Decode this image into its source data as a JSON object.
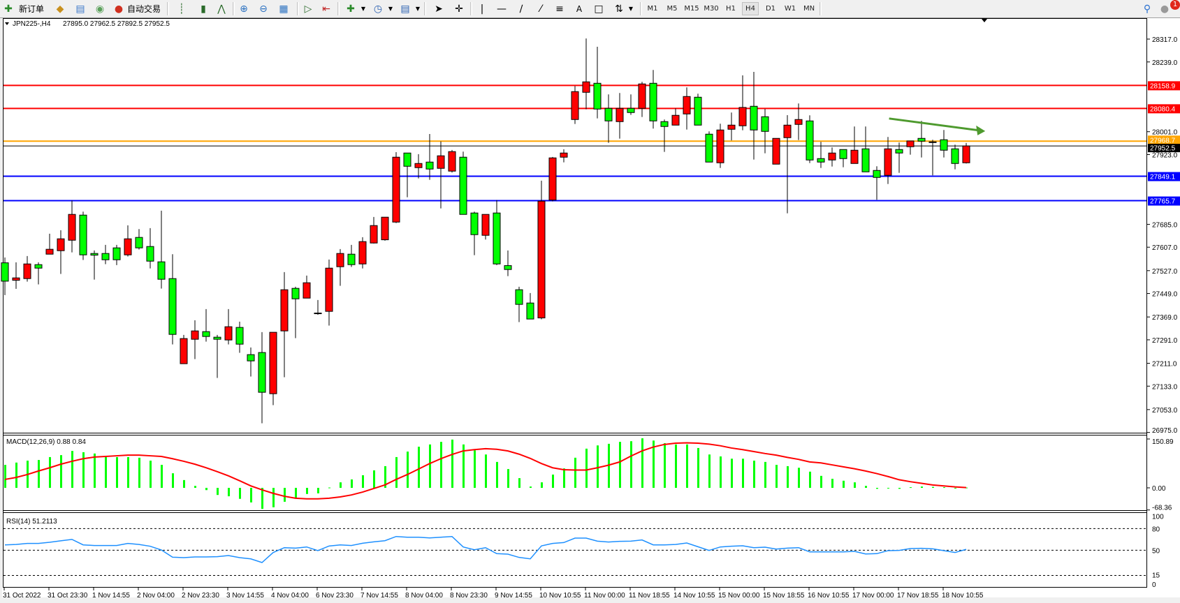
{
  "toolbar": {
    "new_order": "新订单",
    "auto_trading": "自动交易",
    "timeframes": [
      "M1",
      "M5",
      "M15",
      "M30",
      "H1",
      "H4",
      "D1",
      "W1",
      "MN"
    ],
    "active_timeframe": "H4",
    "text_tool": "A",
    "notification_count": "1",
    "icons": [
      "new-order-icon",
      "market-watch-icon",
      "data-window-icon",
      "signals-icon",
      "auto-trading-icon",
      "bar-chart-icon",
      "candlestick-icon",
      "line-chart-icon",
      "zoom-in-icon",
      "zoom-out-icon",
      "tile-windows-icon",
      "auto-scroll-icon",
      "chart-shift-icon",
      "indicators-icon",
      "periods-icon",
      "templates-icon",
      "cursor-icon",
      "crosshair-icon",
      "vertical-line-icon",
      "horizontal-line-icon",
      "trendline-icon",
      "equidistant-channel-icon",
      "fibonacci-icon",
      "text-icon",
      "text-label-icon",
      "arrows-icon",
      "search-icon",
      "notifications-icon"
    ]
  },
  "chart": {
    "symbol_header": "JPN225-,H4",
    "ohlc_header": "27895.0 27962.5 27892.5 27952.5"
  },
  "chart_data": {
    "type": "candlestick",
    "symbol": "JPN225-",
    "timeframe": "H4",
    "up_color": "#ff0000",
    "down_color": "#00ff00",
    "ohlc_columns": [
      "open",
      "high",
      "low",
      "close"
    ],
    "ohlc": [
      [
        27553.7,
        27572.1,
        27443.5,
        27491.1
      ],
      [
        27494.2,
        27555.4,
        27465.0,
        27502.3
      ],
      [
        27499.9,
        27576.8,
        27489.5,
        27549.9
      ],
      [
        27547.5,
        27555.4,
        27480.0,
        27535.6
      ],
      [
        27583.2,
        27653.0,
        27583.2,
        27599.9
      ],
      [
        27595.1,
        27664.9,
        27515.7,
        27635.6
      ],
      [
        27630.8,
        27766.5,
        27589.4,
        27718.9
      ],
      [
        27716.5,
        27728.4,
        27563.3,
        27580.9
      ],
      [
        27585.6,
        27595.9,
        27496.6,
        27579.9
      ],
      [
        27585.6,
        27614.9,
        27549.0,
        27564.2
      ],
      [
        27604.7,
        27614.9,
        27545.9,
        27564.2
      ],
      [
        27580.9,
        27681.5,
        27575.2,
        27635.6
      ],
      [
        27640.4,
        27668.9,
        27599.0,
        27604.7
      ],
      [
        27609.4,
        27672.0,
        27534.7,
        27559.4
      ],
      [
        27557.1,
        27731.5,
        27465.7,
        27497.6
      ],
      [
        27499.9,
        27583.2,
        27275.3,
        27309.5
      ],
      [
        27209.6,
        27307.9,
        27209.6,
        27295.3
      ],
      [
        27292.9,
        27357.9,
        27225.3,
        27321.4
      ],
      [
        27319.0,
        27395.9,
        27284.8,
        27302.4
      ],
      [
        27300.0,
        27307.9,
        27161.0,
        27292.9
      ],
      [
        27290.5,
        27395.9,
        27275.3,
        27335.7
      ],
      [
        27333.3,
        27353.1,
        27246.7,
        27276.2
      ],
      [
        27240.5,
        27265.0,
        27165.8,
        27219.1
      ],
      [
        27247.7,
        27317.4,
        27006.3,
        27112.0
      ],
      [
        27107.2,
        27316.7,
        27068.2,
        27316.7
      ],
      [
        27321.4,
        27522.1,
        27163.4,
        27461.9
      ],
      [
        27466.6,
        27472.1,
        27296.7,
        27430.9
      ],
      [
        27433.3,
        27510.2,
        27433.3,
        27485.7
      ],
      [
        27382.4,
        27426.9,
        27376.2,
        27382.0
      ],
      [
        27388.1,
        27564.9,
        27339.5,
        27535.6
      ],
      [
        27540.4,
        27600.6,
        27475.2,
        27585.6
      ],
      [
        27583.2,
        27614.9,
        27539.5,
        27547.5
      ],
      [
        27549.9,
        27641.1,
        27534.7,
        27626.1
      ],
      [
        27621.3,
        27710.1,
        27619.7,
        27680.8
      ],
      [
        27632.3,
        27709.4,
        27629.2,
        27709.4
      ],
      [
        27692.7,
        27931.4,
        27689.4,
        27914.1
      ],
      [
        27928.3,
        27928.3,
        27777.5,
        27883.1
      ],
      [
        27878.4,
        27924.3,
        27841.7,
        27892.6
      ],
      [
        27897.4,
        27993.3,
        27837.0,
        27873.6
      ],
      [
        27876.0,
        27967.9,
        27739.4,
        27918.8
      ],
      [
        27866.5,
        27938.6,
        27861.7,
        27933.1
      ],
      [
        27914.1,
        27933.1,
        27718.9,
        27718.9
      ],
      [
        27723.7,
        27728.4,
        27579.9,
        27649.9
      ],
      [
        27647.5,
        27718.9,
        27633.2,
        27718.9
      ],
      [
        27723.7,
        27767.9,
        27545.9,
        27549.9
      ],
      [
        27544.2,
        27595.9,
        27508.5,
        27530.9
      ],
      [
        27461.9,
        27472.1,
        27351.4,
        27411.9
      ],
      [
        27416.6,
        27450.7,
        27361.9,
        27361.9
      ],
      [
        27365.7,
        27833.9,
        27361.0,
        27764.1
      ],
      [
        27767.9,
        27914.8,
        27763.2,
        27911.7
      ],
      [
        27914.1,
        27941.0,
        27896.5,
        27928.3
      ],
      [
        28042.6,
        28156.8,
        28027.4,
        28137.8
      ],
      [
        28135.4,
        28319.0,
        28077.3,
        28171.1
      ],
      [
        28166.3,
        28290.8,
        28046.4,
        28078.3
      ],
      [
        28080.7,
        28128.3,
        27963.1,
        28037.8
      ],
      [
        28035.4,
        28133.0,
        27977.4,
        28080.7
      ],
      [
        28080.7,
        28128.3,
        28058.3,
        28066.4
      ],
      [
        28080.7,
        28171.1,
        28051.2,
        28164.0
      ],
      [
        28166.3,
        28211.6,
        28011.6,
        28037.8
      ],
      [
        28035.4,
        28042.6,
        27932.2,
        28018.8
      ],
      [
        28023.5,
        28080.7,
        28023.5,
        28056.9
      ],
      [
        28061.6,
        28152.1,
        28008.3,
        28121.1
      ],
      [
        28118.7,
        28130.6,
        28023.5,
        28023.5
      ],
      [
        27992.6,
        28002.1,
        27897.4,
        27897.4
      ],
      [
        27895.0,
        28028.3,
        27877.4,
        28006.9
      ],
      [
        28009.3,
        28066.4,
        27971.2,
        28023.5
      ],
      [
        28021.2,
        28193.2,
        28005.9,
        28083.8
      ],
      [
        28087.8,
        28205.1,
        27906.0,
        28006.9
      ],
      [
        28052.1,
        28079.0,
        27927.4,
        28002.1
      ],
      [
        27890.3,
        27978.3,
        27890.3,
        27978.3
      ],
      [
        27980.7,
        28057.6,
        27722.7,
        28023.5
      ],
      [
        28025.9,
        28097.3,
        27972.6,
        28042.6
      ],
      [
        28037.8,
        28056.9,
        27894.1,
        27904.5
      ],
      [
        27909.3,
        27966.4,
        27877.4,
        27897.4
      ],
      [
        27904.5,
        27947.4,
        27882.2,
        27928.3
      ],
      [
        27940.2,
        27940.2,
        27879.8,
        27909.3
      ],
      [
        27892.6,
        28018.8,
        27892.6,
        27937.9
      ],
      [
        27942.6,
        28018.8,
        27864.1,
        27864.1
      ],
      [
        27868.8,
        27883.1,
        27768.9,
        27845.0
      ],
      [
        27852.2,
        27983.1,
        27822.7,
        27942.6
      ],
      [
        27940.2,
        27964.0,
        27860.8,
        27928.3
      ],
      [
        27949.8,
        27969.5,
        27922.6,
        27969.5
      ],
      [
        27978.3,
        28037.8,
        27913.1,
        27968.8
      ],
      [
        27966.4,
        27973.6,
        27852.2,
        27965.0
      ],
      [
        27973.6,
        28006.9,
        27913.1,
        27937.9
      ],
      [
        27942.6,
        27956.9,
        27872.7,
        27892.6
      ],
      [
        27895.0,
        27962.5,
        27892.5,
        27952.5
      ]
    ],
    "x_tick_labels": [
      "31 Oct 2022",
      "31 Oct 23:30",
      "1 Nov 14:55",
      "2 Nov 04:00",
      "2 Nov 23:30",
      "3 Nov 14:55",
      "4 Nov 04:00",
      "6 Nov 23:30",
      "7 Nov 14:55",
      "8 Nov 04:00",
      "8 Nov 23:30",
      "9 Nov 14:55",
      "10 Nov 10:55",
      "11 Nov 00:00",
      "11 Nov 18:55",
      "14 Nov 10:55",
      "15 Nov 00:00",
      "15 Nov 18:55",
      "16 Nov 10:55",
      "17 Nov 00:00",
      "17 Nov 18:55",
      "18 Nov 10:55"
    ],
    "x_tick_every_bars": 4,
    "y_tick_labels": [
      "28317.0",
      "28239.0",
      "28001.0",
      "27923.0",
      "27685.0",
      "27607.0",
      "27527.0",
      "27449.0",
      "27369.0",
      "27291.0",
      "27211.0",
      "27133.0",
      "27053.0",
      "26975.0"
    ],
    "ylim": [
      26975.0,
      28317.0
    ],
    "horizontal_lines": [
      {
        "price": 28158.9,
        "label": "28158.9",
        "color": "#ff0000"
      },
      {
        "price": 28080.4,
        "label": "28080.4",
        "color": "#ff0000"
      },
      {
        "price": 27968.7,
        "label": "27968.7",
        "color": "#ffa500"
      },
      {
        "price": 27849.1,
        "label": "27849.1",
        "color": "#0000ff"
      },
      {
        "price": 27765.7,
        "label": "27765.7",
        "color": "#0000ff"
      }
    ],
    "current_price": {
      "price": 27952.5,
      "label": "27952.5",
      "color": "#000000"
    },
    "arrow_annotation": {
      "from": {
        "bar": 79.1,
        "price": 28046
      },
      "to": {
        "bar": 87.7,
        "price": 28003
      },
      "color": "#4e9a2e"
    },
    "macd": {
      "label": "MACD(12,26,9) 0.88 0.84",
      "axis_labels": [
        "150.89",
        "0.00",
        "-68.36"
      ],
      "ylim": [
        -68.36,
        150.89
      ],
      "histogram_color": "#00ff00",
      "signal_color": "#ff0000",
      "histogram": [
        71,
        78,
        84,
        86,
        95,
        101,
        114,
        110,
        106,
        95,
        95,
        95,
        93,
        84,
        71,
        45,
        24,
        6,
        -7,
        -22,
        -26,
        -34,
        -45,
        -65,
        -60,
        -43,
        -32,
        -19,
        -17,
        1,
        17,
        26,
        39,
        54,
        67,
        95,
        112,
        127,
        134,
        142,
        149,
        134,
        116,
        103,
        80,
        58,
        30,
        4,
        17,
        41,
        60,
        93,
        121,
        131,
        136,
        142,
        144,
        153,
        146,
        138,
        134,
        134,
        123,
        103,
        97,
        90,
        90,
        84,
        80,
        71,
        67,
        62,
        50,
        37,
        28,
        22,
        17,
        6,
        -3,
        -1,
        -3,
        2,
        4,
        3,
        2,
        -1,
        0.88
      ],
      "signal": [
        26,
        32,
        41,
        52,
        62,
        73,
        82,
        90,
        95,
        97,
        99,
        101,
        101,
        99,
        97,
        90,
        82,
        73,
        62,
        50,
        37,
        22,
        6,
        -6,
        -17,
        -26,
        -32,
        -34,
        -34,
        -32,
        -28,
        -22,
        -13,
        -2,
        9,
        26,
        41,
        58,
        75,
        90,
        103,
        114,
        118,
        121,
        119,
        114,
        104,
        91,
        75,
        62,
        56,
        55,
        55,
        62,
        70,
        80,
        98,
        114,
        126,
        134,
        138,
        139,
        138,
        135,
        130,
        123,
        118,
        112,
        106,
        101,
        94,
        88,
        80,
        77,
        71,
        65,
        59,
        52,
        44,
        35,
        25,
        19,
        14,
        9,
        6,
        3,
        0.84
      ]
    },
    "rsi": {
      "label": "RSI(14) 51.2113",
      "axis_labels": [
        "100",
        "80",
        "50",
        "15",
        "0"
      ],
      "levels": [
        80,
        50,
        15
      ],
      "ylim": [
        0,
        100
      ],
      "color": "#1e90ff",
      "values": [
        57.4,
        58,
        59.4,
        59.4,
        61,
        63,
        65,
        57.4,
        56.5,
        56.5,
        56.5,
        59.4,
        58,
        55.5,
        50.3,
        40.3,
        39.7,
        40.6,
        40.6,
        41,
        42.6,
        39.7,
        38,
        32.9,
        46.8,
        53.5,
        52.9,
        54.5,
        49.4,
        55.8,
        57.4,
        56.5,
        59.7,
        61.6,
        63.2,
        69,
        68,
        68,
        67,
        68,
        69,
        54.5,
        50.6,
        53.5,
        45.2,
        44.5,
        40,
        38,
        56,
        59.4,
        60.6,
        66.8,
        66.8,
        62.6,
        61.3,
        62.3,
        62.6,
        64.2,
        57.4,
        57.4,
        58,
        60,
        54.8,
        49.7,
        54.5,
        55.5,
        56.1,
        53.5,
        54.2,
        51.6,
        52.9,
        53.5,
        47.7,
        47.7,
        47.7,
        47.7,
        48.4,
        44.8,
        45.2,
        49.4,
        49.7,
        52.3,
        52.6,
        51.9,
        49.4,
        46.8,
        51.2113
      ]
    }
  }
}
